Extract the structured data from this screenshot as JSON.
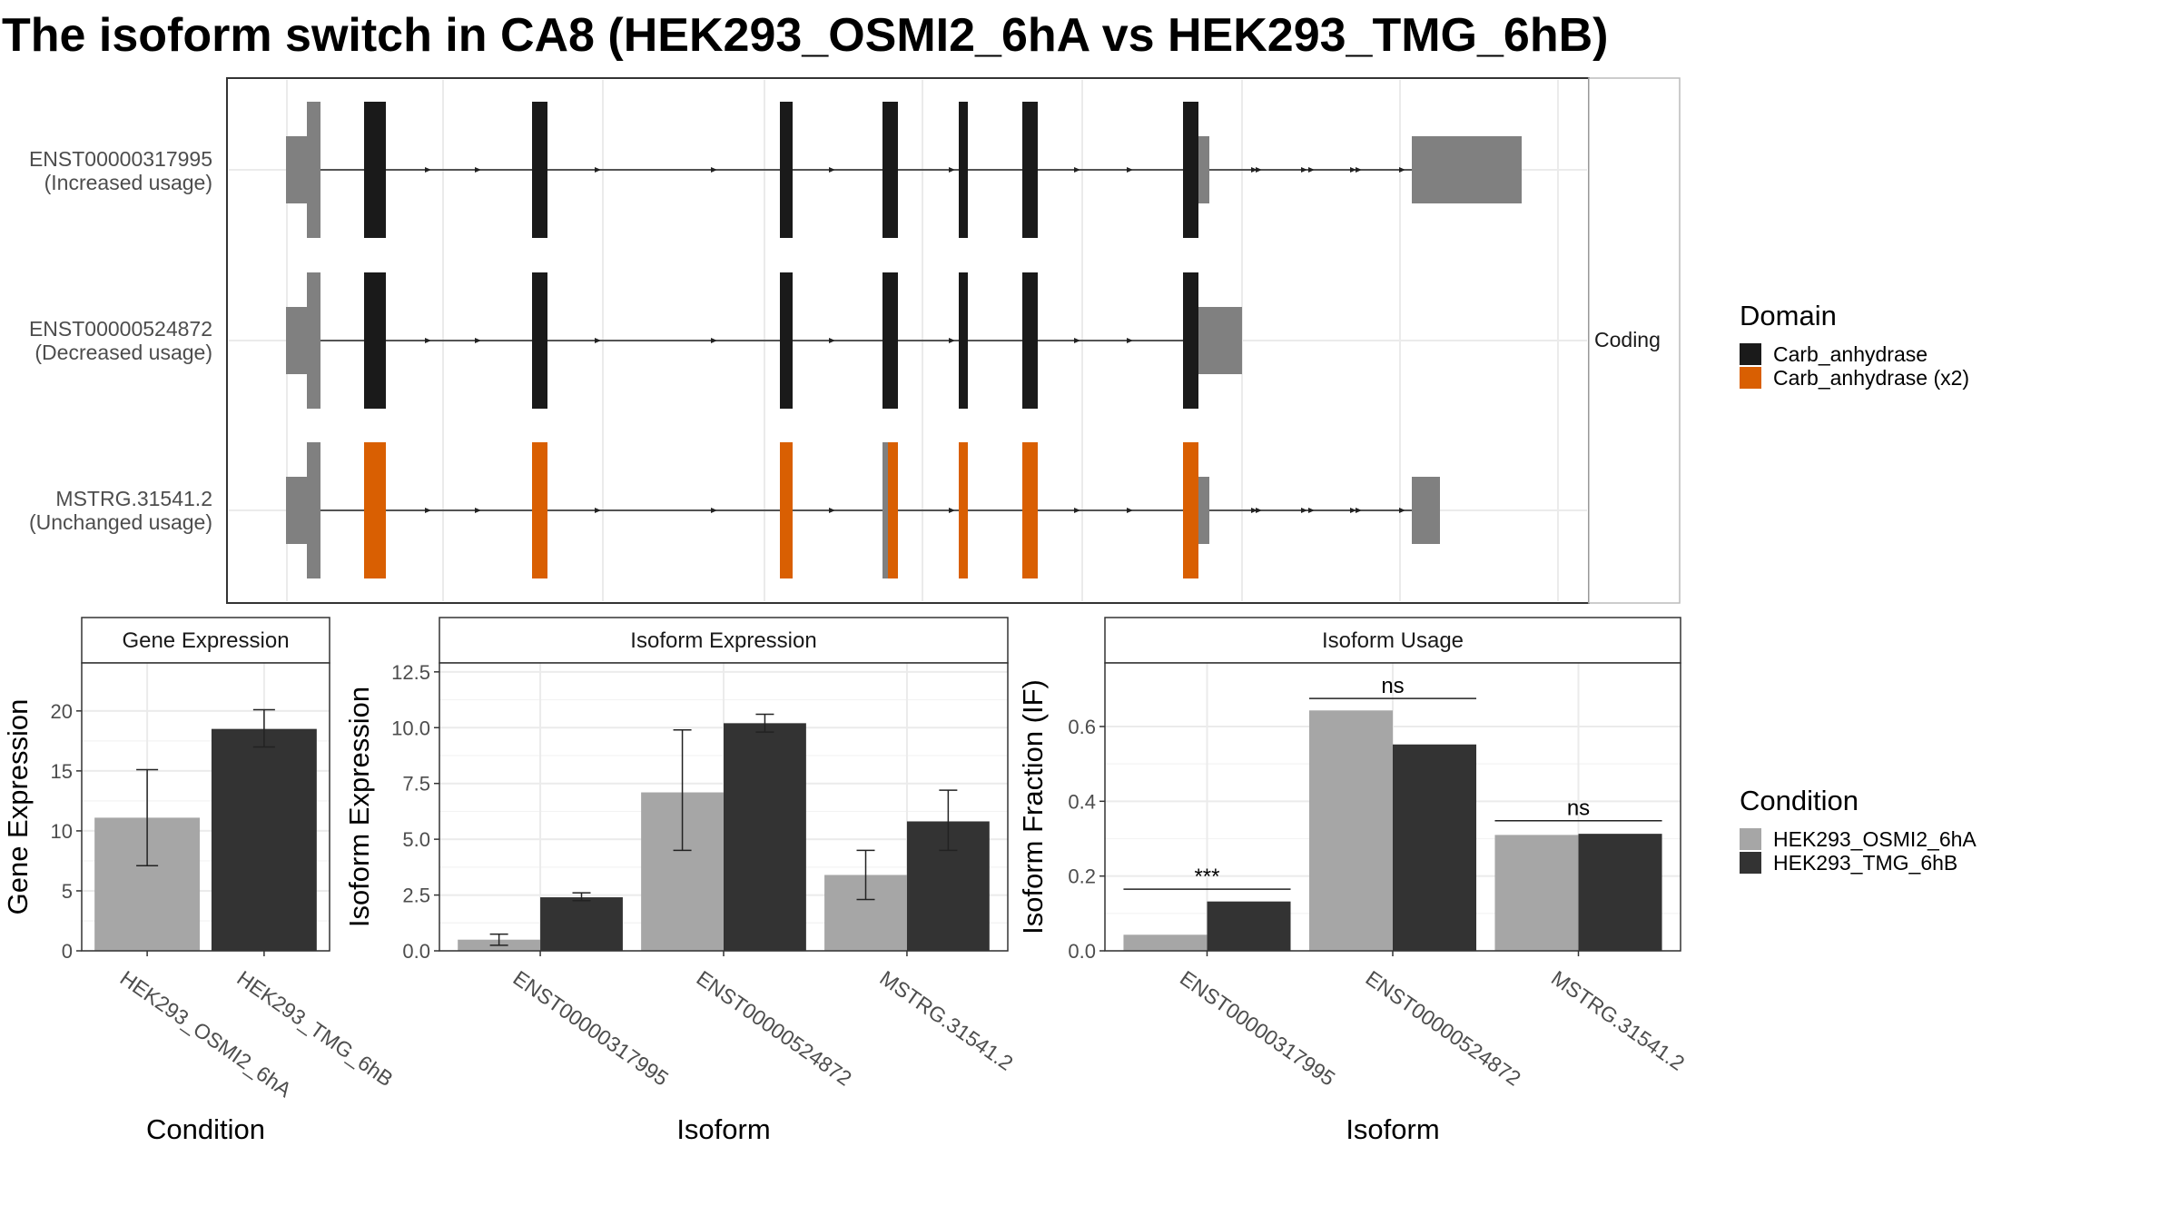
{
  "title": "The isoform switch in CA8 (HEK293_OSMI2_6hA vs HEK293_TMG_6hB)",
  "colors": {
    "utr": "#808080",
    "domain_black": "#1a1a1a",
    "domain_orange": "#d95f02",
    "cond_a": "#a6a6a6",
    "cond_b": "#333333",
    "grid": "#ebebeb",
    "panel_border": "#333333"
  },
  "structure": {
    "strip_label": "Coding",
    "transcripts": [
      {
        "id": "ENST00000317995",
        "usage": "(Increased usage)"
      },
      {
        "id": "ENST00000524872",
        "usage": "(Decreased usage)"
      },
      {
        "id": "MSTRG.31541.2",
        "usage": "(Unchanged usage)"
      }
    ]
  },
  "legends": {
    "domain": {
      "title": "Domain",
      "items": [
        {
          "label": "Carb_anhydrase",
          "color": "#1a1a1a"
        },
        {
          "label": "Carb_anhydrase (x2)",
          "color": "#d95f02"
        }
      ]
    },
    "condition": {
      "title": "Condition",
      "items": [
        {
          "label": "HEK293_OSMI2_6hA",
          "color": "#a6a6a6"
        },
        {
          "label": "HEK293_TMG_6hB",
          "color": "#333333"
        }
      ]
    }
  },
  "chart_data": [
    {
      "type": "bar",
      "panel": "gene",
      "title": "Gene Expression",
      "xlabel": "Condition",
      "ylabel": "Gene Expression",
      "categories": [
        "HEK293_OSMI2_6hA",
        "HEK293_TMG_6hB"
      ],
      "values": [
        11.1,
        18.5
      ],
      "errors": [
        [
          7.1,
          15.1
        ],
        [
          17.0,
          20.1
        ]
      ],
      "yticks": [
        "0",
        "5",
        "10",
        "15",
        "20"
      ],
      "ylim": [
        0,
        24.0
      ],
      "grid": true
    },
    {
      "type": "bar",
      "panel": "isoform_expression",
      "title": "Isoform Expression",
      "xlabel": "Isoform",
      "ylabel": "Isoform Expression",
      "categories": [
        "ENST00000317995",
        "ENST00000524872",
        "MSTRG.31541.2"
      ],
      "series": [
        {
          "name": "HEK293_OSMI2_6hA",
          "values": [
            0.5,
            7.1,
            3.4
          ],
          "errors": [
            [
              0.25,
              0.75
            ],
            [
              4.5,
              9.9
            ],
            [
              2.3,
              4.5
            ]
          ]
        },
        {
          "name": "HEK293_TMG_6hB",
          "values": [
            2.4,
            10.2,
            5.8
          ],
          "errors": [
            [
              2.25,
              2.6
            ],
            [
              9.8,
              10.6
            ],
            [
              4.5,
              7.2
            ]
          ]
        }
      ],
      "yticks": [
        "0.0",
        "2.5",
        "5.0",
        "7.5",
        "10.0",
        "12.5"
      ],
      "ylim": [
        0,
        12.9
      ],
      "grid": true
    },
    {
      "type": "bar",
      "panel": "isoform_usage",
      "title": "Isoform Usage",
      "xlabel": "Isoform",
      "ylabel": "Isoform Fraction (IF)",
      "categories": [
        "ENST00000317995",
        "ENST00000524872",
        "MSTRG.31541.2"
      ],
      "series": [
        {
          "name": "HEK293_OSMI2_6hA",
          "values": [
            0.043,
            0.643,
            0.31
          ]
        },
        {
          "name": "HEK293_TMG_6hB",
          "values": [
            0.132,
            0.552,
            0.313
          ]
        }
      ],
      "significance": [
        "***",
        "ns",
        "ns"
      ],
      "sig_levels": [
        0.165,
        0.675,
        0.348
      ],
      "yticks": [
        "0.0",
        "0.2",
        "0.4",
        "0.6"
      ],
      "ylim": [
        0,
        0.77
      ],
      "grid": true
    }
  ]
}
